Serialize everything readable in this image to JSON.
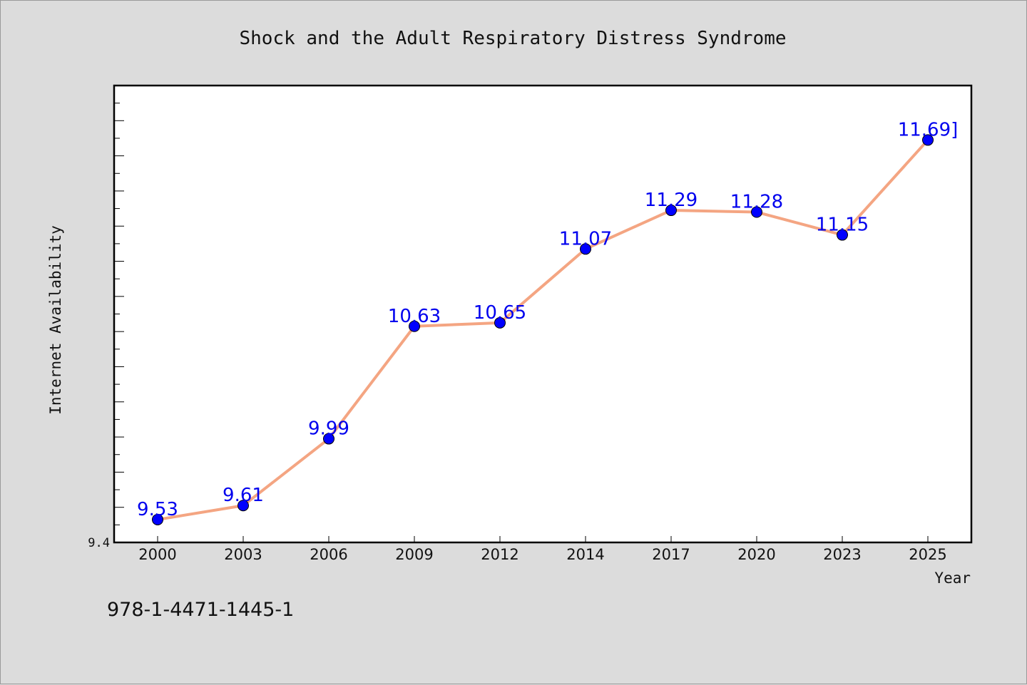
{
  "chart_data": {
    "type": "line",
    "title": "Shock and the Adult Respiratory Distress Syndrome",
    "xlabel": "Year",
    "ylabel": "Internet Availability",
    "categories": [
      "2000",
      "2003",
      "2006",
      "2009",
      "2012",
      "2014",
      "2017",
      "2020",
      "2023",
      "2025"
    ],
    "series": [
      {
        "values": [
          9.53,
          9.61,
          9.99,
          10.63,
          10.65,
          11.07,
          11.29,
          11.28,
          11.15,
          11.69
        ]
      }
    ],
    "data_labels": [
      "9.53",
      "9.61",
      "9.99",
      "10.63",
      "10.65",
      "11.07",
      "11.29",
      "11.28",
      "11.15",
      "11.69]"
    ],
    "ylim": [
      9.4,
      12.0
    ],
    "y_tick_labels": [
      "9.4"
    ],
    "grid": false,
    "legend": "none",
    "colors": {
      "line": "#f4a582",
      "marker": "#0000ff",
      "label": "#0000ee",
      "background": "#dcdcdc",
      "plot_background": "#ffffff"
    }
  },
  "footer_text": "978-1-4471-1445-1"
}
